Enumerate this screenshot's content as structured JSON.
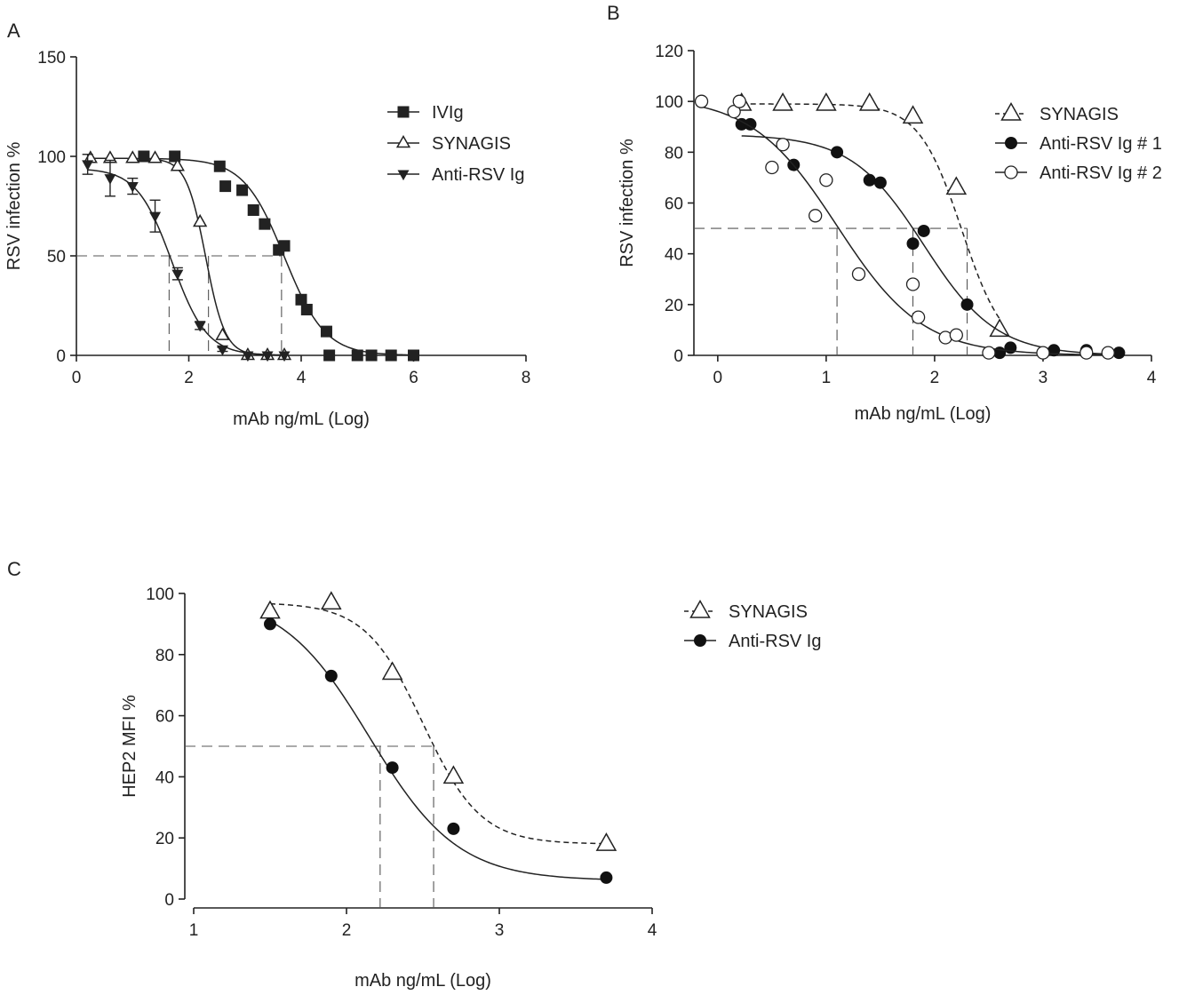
{
  "figure": {
    "panels": [
      "A",
      "B",
      "C"
    ]
  },
  "chart_data": [
    {
      "panel": "A",
      "type": "scatter",
      "xlabel": "mAb ng/mL (Log)",
      "ylabel": "RSV infection %",
      "xlim": [
        0,
        8
      ],
      "ylim": [
        0,
        150
      ],
      "xticks": [
        0,
        2,
        4,
        6,
        8
      ],
      "yticks": [
        0,
        50,
        100,
        150
      ],
      "legend_position": "top-right",
      "ic50_lines": [
        1.65,
        2.35,
        3.65
      ],
      "ic50_level": 50,
      "series": [
        {
          "name": "IVIg",
          "marker": "square",
          "line": "solid",
          "x": [
            1.2,
            1.75,
            2.55,
            2.65,
            2.95,
            3.15,
            3.35,
            3.6,
            3.7,
            4.0,
            4.1,
            4.45,
            4.5,
            5.0,
            5.25,
            5.6,
            6.0
          ],
          "y": [
            100,
            100,
            95,
            85,
            83,
            73,
            66,
            53,
            55,
            28,
            23,
            12,
            0,
            0,
            0,
            0,
            0
          ],
          "fit": {
            "top": 99,
            "bottom": 0,
            "ec50": 3.7,
            "hill": 1.2
          }
        },
        {
          "name": "SYNAGIS",
          "marker": "triangle-open",
          "line": "solid",
          "x": [
            0.25,
            0.6,
            1.0,
            1.4,
            1.8,
            2.2,
            2.6,
            3.05,
            3.4,
            3.7
          ],
          "y": [
            99,
            99,
            99,
            99,
            95,
            67,
            10,
            0,
            0,
            0
          ],
          "fit": {
            "top": 99,
            "bottom": 0,
            "ec50": 2.3,
            "hill": 2.5
          }
        },
        {
          "name": "Anti-RSV Ig",
          "marker": "triangle-down",
          "line": "solid",
          "x": [
            0.2,
            0.6,
            1.0,
            1.4,
            1.8,
            2.2,
            2.6,
            3.05,
            3.4,
            3.7
          ],
          "y": [
            96,
            89,
            85,
            70,
            41,
            15,
            3,
            0,
            0,
            0
          ],
          "err": [
            5,
            9,
            4,
            8,
            3,
            2,
            1,
            0,
            0,
            0
          ],
          "fit": {
            "top": 94,
            "bottom": 0,
            "ec50": 1.7,
            "hill": 1.4
          }
        }
      ]
    },
    {
      "panel": "B",
      "type": "scatter",
      "xlabel": "mAb ng/mL (Log)",
      "ylabel": "RSV infection %",
      "xlim": [
        -0.22,
        4
      ],
      "ylim": [
        0,
        120
      ],
      "xticks": [
        0,
        1,
        2,
        3,
        4
      ],
      "yticks": [
        0,
        20,
        40,
        60,
        80,
        100,
        120
      ],
      "legend_position": "top-right",
      "ic50_lines": [
        1.1,
        1.8,
        2.3
      ],
      "ic50_level": 50,
      "series": [
        {
          "name": "SYNAGIS",
          "marker": "triangle-open",
          "line": "dashed",
          "x": [
            0.22,
            0.6,
            1.0,
            1.4,
            1.8,
            2.2,
            2.6
          ],
          "y": [
            99,
            99,
            99,
            99,
            94,
            66,
            10
          ],
          "fit": {
            "top": 99,
            "bottom": 0,
            "ec50": 2.25,
            "hill": 2.2
          }
        },
        {
          "name": "Anti-RSV Ig # 1",
          "marker": "circle-filled",
          "line": "solid",
          "x": [
            0.22,
            0.3,
            0.7,
            1.1,
            1.4,
            1.5,
            1.8,
            1.9,
            2.3,
            2.6,
            2.7,
            3.0,
            3.1,
            3.4,
            3.7
          ],
          "y": [
            91,
            91,
            75,
            80,
            69,
            68,
            44,
            49,
            20,
            1,
            3,
            1,
            2,
            2,
            1
          ],
          "fit": {
            "top": 87,
            "bottom": 0,
            "ec50": 1.9,
            "hill": 1.3
          }
        },
        {
          "name": "Anti-RSV Ig # 2",
          "marker": "circle-open",
          "line": "solid",
          "x": [
            -0.15,
            0.15,
            0.2,
            0.5,
            0.6,
            0.9,
            1.0,
            1.3,
            1.8,
            1.85,
            2.1,
            2.2,
            2.5,
            3.0,
            3.4,
            3.6
          ],
          "y": [
            100,
            96,
            100,
            74,
            83,
            55,
            69,
            32,
            28,
            15,
            7,
            8,
            1,
            1,
            1,
            1
          ],
          "fit": {
            "top": 102,
            "bottom": 0,
            "ec50": 1.1,
            "hill": 1.1
          }
        }
      ]
    },
    {
      "panel": "C",
      "type": "scatter",
      "xlabel": "mAb ng/mL (Log)",
      "ylabel": "HEP2 MFI %",
      "xlim": [
        1,
        4
      ],
      "ylim": [
        0,
        100
      ],
      "xticks": [
        1,
        2,
        3,
        4
      ],
      "yticks": [
        0,
        20,
        40,
        60,
        80,
        100
      ],
      "legend_position": "right",
      "ic50_lines": [
        2.22,
        2.57
      ],
      "ic50_level": 50,
      "series": [
        {
          "name": "SYNAGIS",
          "marker": "triangle-open",
          "line": "dashed",
          "x": [
            1.5,
            1.9,
            2.3,
            2.7,
            3.7
          ],
          "y": [
            94,
            97,
            74,
            40,
            18
          ],
          "fit": {
            "top": 97,
            "bottom": 18,
            "ec50": 2.5,
            "hill": 2.3
          }
        },
        {
          "name": "Anti-RSV Ig",
          "marker": "circle-filled",
          "line": "solid",
          "x": [
            1.5,
            1.9,
            2.3,
            2.7,
            3.7
          ],
          "y": [
            90,
            73,
            43,
            23,
            7
          ],
          "fit": {
            "top": 100,
            "bottom": 6,
            "ec50": 2.15,
            "hill": 1.5
          }
        }
      ]
    }
  ]
}
